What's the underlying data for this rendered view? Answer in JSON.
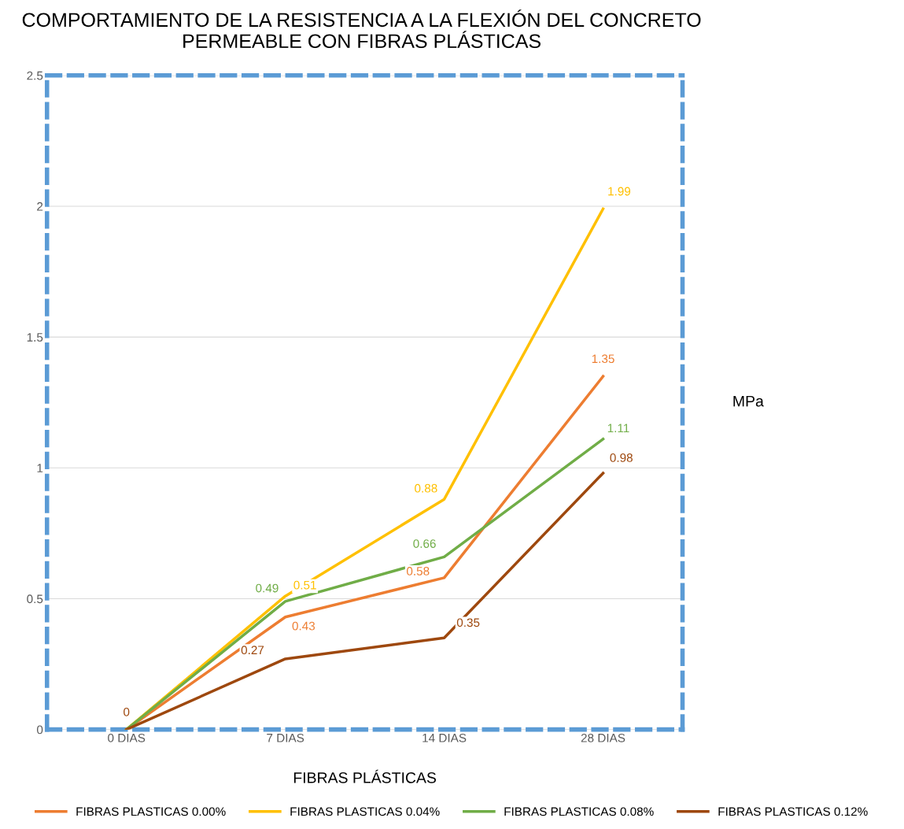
{
  "chart_data": {
    "type": "line",
    "title": "COMPORTAMIENTO DE LA RESISTENCIA A LA FLEXIÓN DEL CONCRETO\nPERMEABLE CON FIBRAS PLÁSTICAS",
    "xlabel": "FIBRAS PLÁSTICAS",
    "ylabel": "MPa",
    "categories": [
      "0 DIAS",
      "7 DIAS",
      "14 DIAS",
      "28 DIAS"
    ],
    "series": [
      {
        "name": "FIBRAS PLASTICAS 0.00%",
        "color": "#ed7d31",
        "values": [
          0,
          0.43,
          0.58,
          1.35
        ],
        "value_labels": [
          null,
          "0.43",
          "0.58",
          "1.35"
        ]
      },
      {
        "name": "FIBRAS PLASTICAS 0.04%",
        "color": "#ffc000",
        "values": [
          0,
          0.51,
          0.88,
          1.99
        ],
        "value_labels": [
          null,
          "0.51",
          "0.88",
          "1.99"
        ]
      },
      {
        "name": "FIBRAS PLASTICAS 0.08%",
        "color": "#70ad47",
        "values": [
          0,
          0.49,
          0.66,
          1.11
        ],
        "value_labels": [
          null,
          "0.49",
          "0.66",
          "1.11"
        ]
      },
      {
        "name": "FIBRAS PLASTICAS 0.12%",
        "color": "#9e480e",
        "values": [
          0,
          0.27,
          0.35,
          0.98
        ],
        "value_labels": [
          "0",
          "0.27",
          "0.35",
          "0.98"
        ]
      }
    ],
    "ylim": [
      0,
      2.5
    ],
    "yticks": [
      0,
      0.5,
      1,
      1.5,
      2,
      2.5
    ],
    "grid": "y",
    "legend": "bottom",
    "marker": "none",
    "line_style": "solid"
  }
}
